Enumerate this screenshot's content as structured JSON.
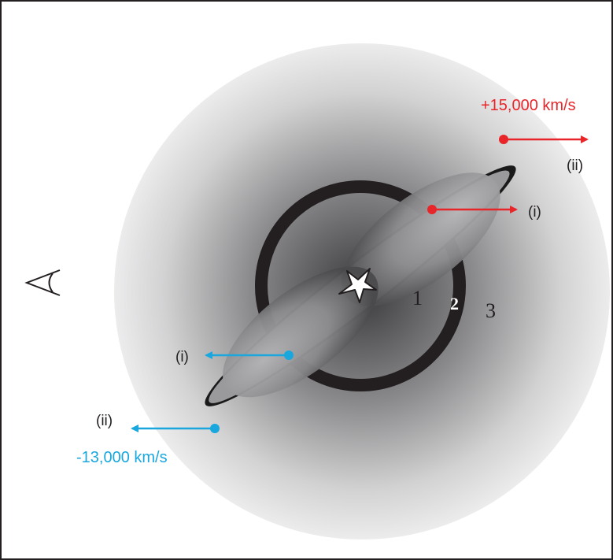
{
  "velocity": {
    "receding": "+15,000 km/s",
    "approaching": "-13,000 km/s"
  },
  "markers": {
    "inner": "(i)",
    "outer": "(ii)"
  },
  "regions": {
    "inner": "1",
    "shell": "2",
    "outer": "3"
  },
  "colors": {
    "receding": "#e8262a",
    "approaching": "#1aa7de",
    "frame": "#231f20",
    "shell": "#231f20"
  },
  "icons": {
    "observer": "eye-icon",
    "star": "star-icon"
  }
}
